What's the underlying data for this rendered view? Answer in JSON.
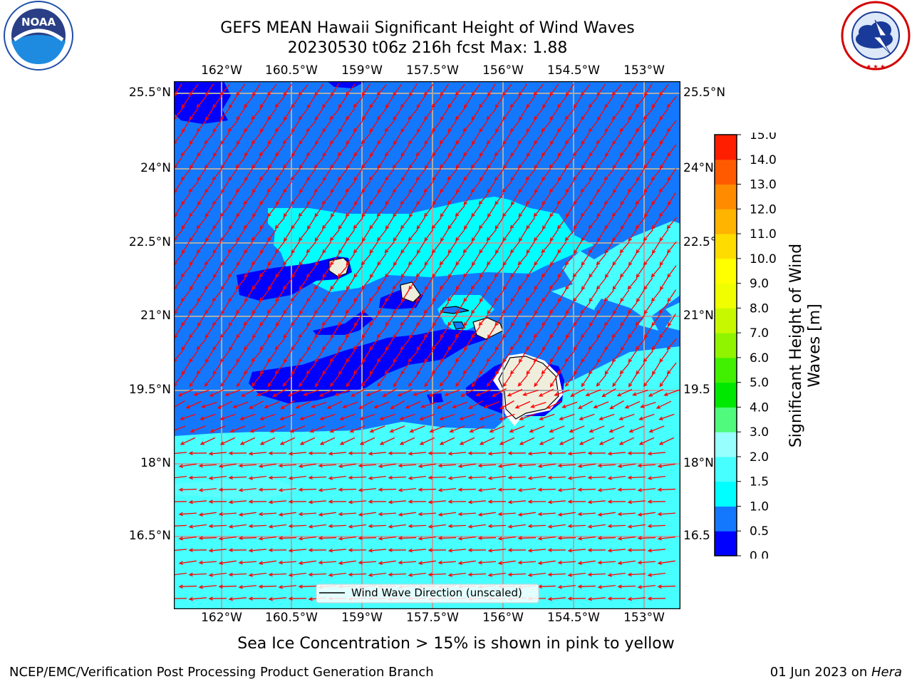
{
  "title": {
    "line1": "GEFS MEAN Hawaii Significant Height of Wind Waves",
    "line2": "20230530 t06z 216h fcst   Max: 1.88"
  },
  "logos": {
    "left": {
      "name": "noaa-logo",
      "text": "NOAA",
      "ring_text": "NATIONAL OCEANIC AND ATMOSPHERIC ADMINISTRATION",
      "bottom_text": "U.S. DEPARTMENT OF COMMERCE",
      "color": "#1f4fa8"
    },
    "right": {
      "name": "nws-logo",
      "ring_text": "NATIONAL WEATHER SERVICE",
      "color": "#d40000"
    }
  },
  "map": {
    "region": "Hawaii",
    "lon_ticks": [
      "162°W",
      "160.5°W",
      "159°W",
      "157.5°W",
      "156°W",
      "154.5°W",
      "153°W"
    ],
    "lat_ticks_left": [
      "25.5°N",
      "24°N",
      "22.5°N",
      "21°N",
      "19.5°N",
      "18°N",
      "16.5°N"
    ],
    "lat_ticks_right": [
      "25.5°N",
      "24°N",
      "22.5°",
      "21°N",
      "19.5",
      "18°N",
      "16.5"
    ],
    "grid": true,
    "land_color": "#efeedd",
    "vector_color": "#ff0000",
    "legend": {
      "label": "Wind Wave Direction (unscaled)",
      "placement": "bottom-center"
    }
  },
  "colorbar": {
    "label": "Significant Height of Wind Waves [m]",
    "label_line1": "Significant Height of Wind",
    "label_line2": "Waves [m]",
    "levels": [
      0.0,
      0.5,
      1.0,
      1.5,
      2.0,
      3.0,
      4.0,
      5.0,
      6.0,
      7.0,
      8.0,
      9.0,
      10.0,
      11.0,
      12.0,
      13.0,
      14.0,
      15.0
    ],
    "tick_labels": [
      "0.0",
      "0.5",
      "1.0",
      "1.5",
      "2.0",
      "3.0",
      "4.0",
      "5.0",
      "6.0",
      "7.0",
      "8.0",
      "9.0",
      "10.0",
      "11.0",
      "12.0",
      "13.0",
      "14.0",
      "15.0"
    ],
    "colors": [
      "#0000ff",
      "#1478ff",
      "#00ffff",
      "#48ffff",
      "#98ffff",
      "#50fa7c",
      "#00e800",
      "#40f000",
      "#90f400",
      "#c8f800",
      "#f0ff00",
      "#ffff00",
      "#ffdc00",
      "#ffb400",
      "#ff8c00",
      "#ff5a00",
      "#ff1e00"
    ]
  },
  "caption": "Sea Ice Concentration > 15% is shown in pink to yellow",
  "footer": {
    "left": "NCEP/EMC/Verification Post Processing Product Generation Branch",
    "date": "01 Jun 2023 on ",
    "machine": "Hera"
  }
}
